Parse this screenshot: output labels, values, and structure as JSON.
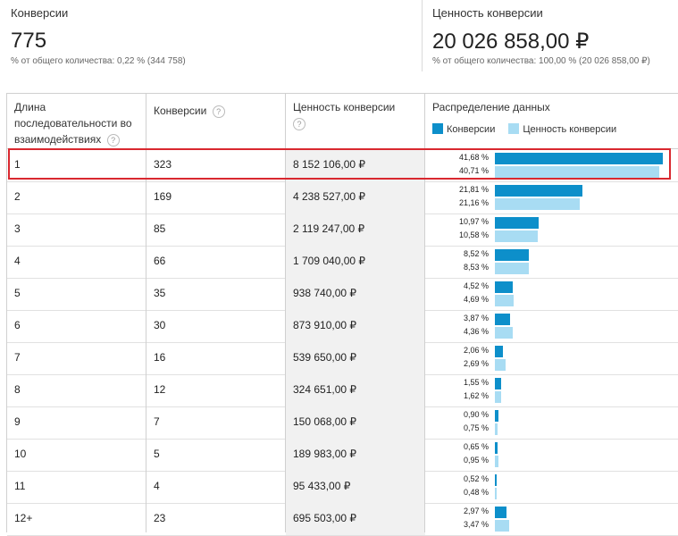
{
  "summary": {
    "conversions": {
      "label": "Конверсии",
      "value": "775",
      "sub": "% от общего количества: 0,22 % (344 758)"
    },
    "value": {
      "label": "Ценность конверсии",
      "value": "20 026 858,00 ₽",
      "sub": "% от общего количества: 100,00 % (20 026 858,00 ₽)"
    }
  },
  "table": {
    "headers": {
      "length": "Длина последовательности во взаимодействиях",
      "conversions": "Конверсии",
      "value": "Ценность конверсии",
      "distribution": "Распределение данных"
    },
    "help_icon": "?",
    "legend": {
      "conversions": "Конверсии",
      "value": "Ценность конверсии"
    },
    "colors": {
      "conversions": "#0d8fca",
      "value": "#a8dcf3",
      "highlight": "#d9282f"
    },
    "rows": [
      {
        "length": "1",
        "conversions": "323",
        "value": "8 152 106,00 ₽",
        "pct_conv": "41,68 %",
        "pct_val": "40,71 %",
        "conv_share": 41.68,
        "val_share": 40.71
      },
      {
        "length": "2",
        "conversions": "169",
        "value": "4 238 527,00 ₽",
        "pct_conv": "21,81 %",
        "pct_val": "21,16 %",
        "conv_share": 21.81,
        "val_share": 21.16
      },
      {
        "length": "3",
        "conversions": "85",
        "value": "2 119 247,00 ₽",
        "pct_conv": "10,97 %",
        "pct_val": "10,58 %",
        "conv_share": 10.97,
        "val_share": 10.58
      },
      {
        "length": "4",
        "conversions": "66",
        "value": "1 709 040,00 ₽",
        "pct_conv": "8,52 %",
        "pct_val": "8,53 %",
        "conv_share": 8.52,
        "val_share": 8.53
      },
      {
        "length": "5",
        "conversions": "35",
        "value": "938 740,00 ₽",
        "pct_conv": "4,52 %",
        "pct_val": "4,69 %",
        "conv_share": 4.52,
        "val_share": 4.69
      },
      {
        "length": "6",
        "conversions": "30",
        "value": "873 910,00 ₽",
        "pct_conv": "3,87 %",
        "pct_val": "4,36 %",
        "conv_share": 3.87,
        "val_share": 4.36
      },
      {
        "length": "7",
        "conversions": "16",
        "value": "539 650,00 ₽",
        "pct_conv": "2,06 %",
        "pct_val": "2,69 %",
        "conv_share": 2.06,
        "val_share": 2.69
      },
      {
        "length": "8",
        "conversions": "12",
        "value": "324 651,00 ₽",
        "pct_conv": "1,55 %",
        "pct_val": "1,62 %",
        "conv_share": 1.55,
        "val_share": 1.62
      },
      {
        "length": "9",
        "conversions": "7",
        "value": "150 068,00 ₽",
        "pct_conv": "0,90 %",
        "pct_val": "0,75 %",
        "conv_share": 0.9,
        "val_share": 0.75
      },
      {
        "length": "10",
        "conversions": "5",
        "value": "189 983,00 ₽",
        "pct_conv": "0,65 %",
        "pct_val": "0,95 %",
        "conv_share": 0.65,
        "val_share": 0.95
      },
      {
        "length": "11",
        "conversions": "4",
        "value": "95 433,00 ₽",
        "pct_conv": "0,52 %",
        "pct_val": "0,48 %",
        "conv_share": 0.52,
        "val_share": 0.48
      },
      {
        "length": "12+",
        "conversions": "23",
        "value": "695 503,00 ₽",
        "pct_conv": "2,97 %",
        "pct_val": "3,47 %",
        "conv_share": 2.97,
        "val_share": 3.47
      }
    ]
  }
}
